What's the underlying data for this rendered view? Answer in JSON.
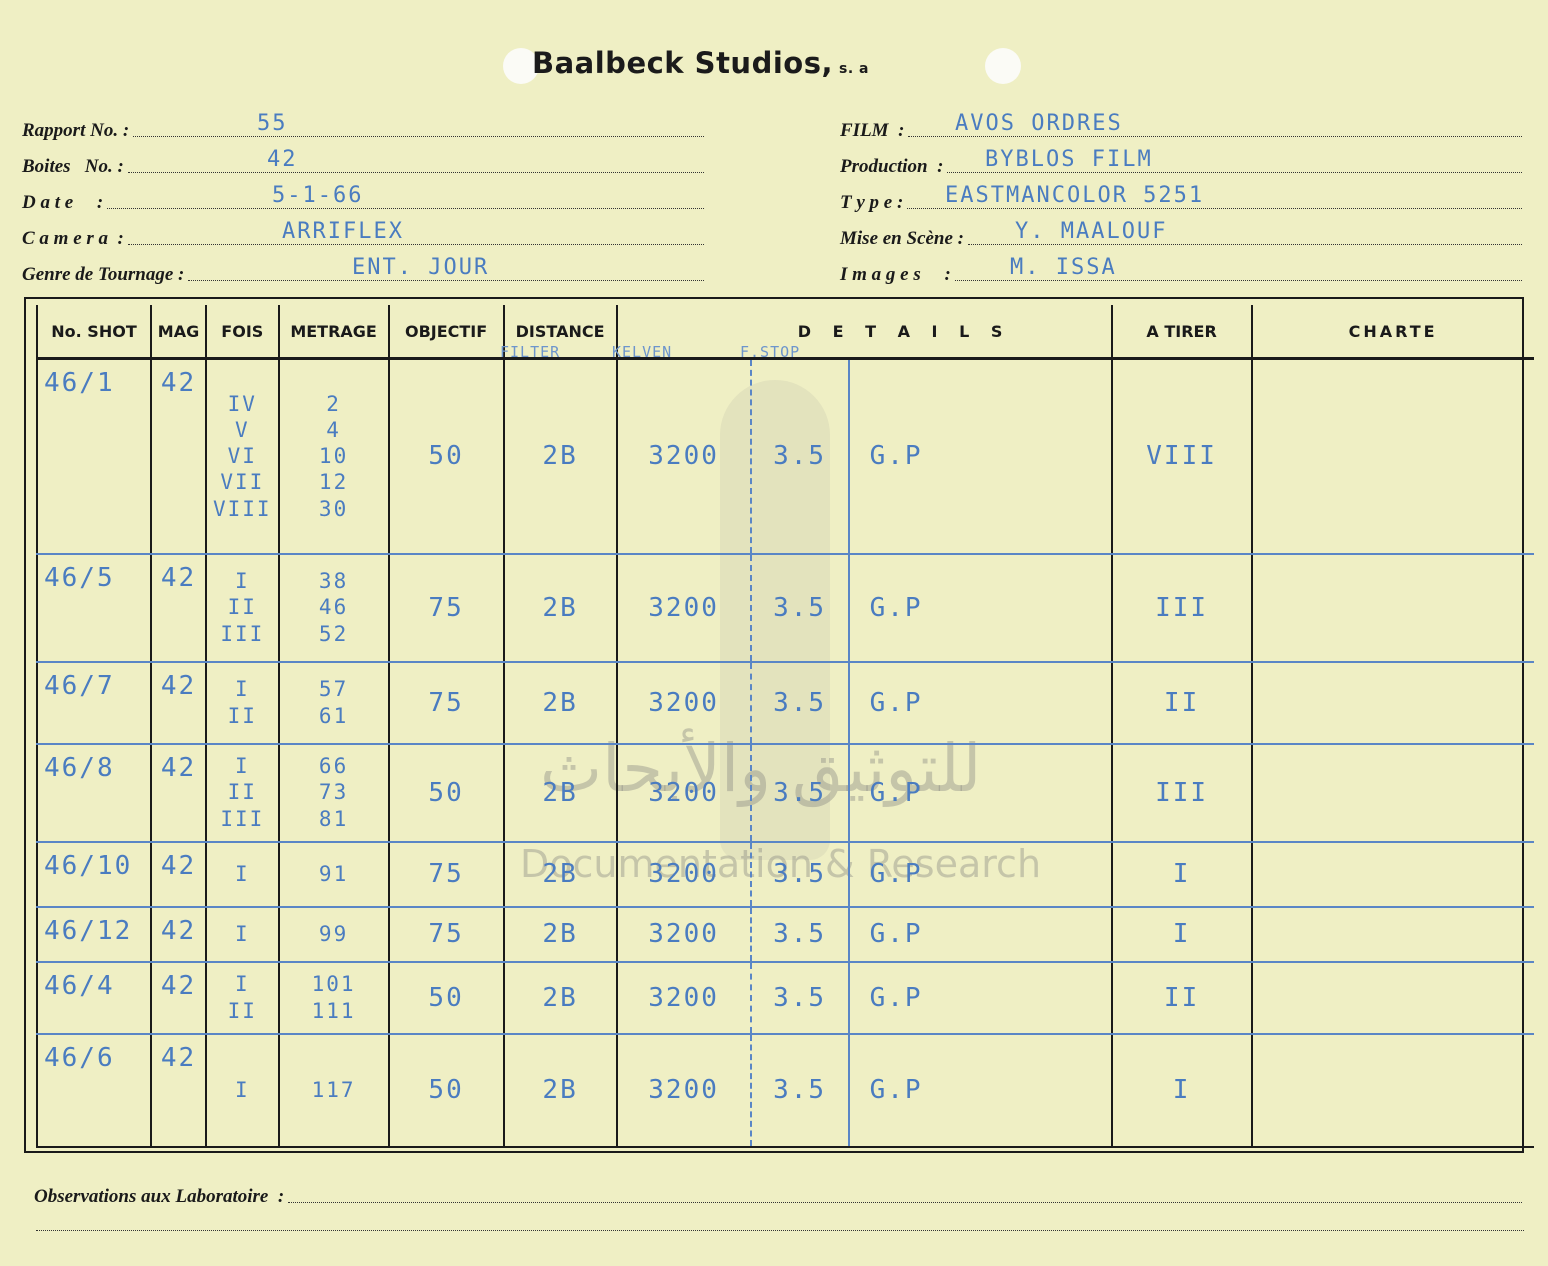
{
  "header": {
    "brand": "Baalbeck Studios,",
    "brand_suffix": "s. a"
  },
  "left_fields": [
    {
      "label": "Rapport No. :",
      "value": "55"
    },
    {
      "label": "Boites   No. :",
      "value": "42"
    },
    {
      "label": "D a t e     :",
      "value": "5-1-66"
    },
    {
      "label": "C a m e r a  :",
      "value": "ARRIFLEX"
    },
    {
      "label": "Genre de Tournage :",
      "value": "ENT. JOUR"
    }
  ],
  "right_fields": [
    {
      "label": "FILM  :",
      "value": "AVOS ORDRES"
    },
    {
      "label": "Production  :",
      "value": "BYBLOS FILM"
    },
    {
      "label": "T y p e :",
      "value": "EASTMANCOLOR   5251"
    },
    {
      "label": "Mise en Scène :",
      "value": "Y. MAALOUF"
    },
    {
      "label": "I m a g e s     :",
      "value": "M. ISSA"
    }
  ],
  "table": {
    "headers": [
      "No. SHOT",
      "MAG",
      "FOIS",
      "METRAGE",
      "OBJECTIF",
      "DISTANCE",
      "D E T A I L S",
      "A TIRER",
      "CHARTE"
    ],
    "handwritten_subheaders": [
      "FILTER",
      "KELVEN",
      "F.STOP"
    ],
    "rows": [
      {
        "shot": "46/1",
        "mag": "42",
        "fois": [
          "IV",
          "V",
          "VI",
          "VII",
          "VIII"
        ],
        "metrage": [
          "2",
          "4",
          "10",
          "12",
          "30"
        ],
        "objectif": "50",
        "filter": "2B",
        "kelvin": "3200",
        "fstop": "3.5",
        "details": "G.P",
        "a_tirer": "VIII",
        "charte": ""
      },
      {
        "shot": "46/5",
        "mag": "42",
        "fois": [
          "I",
          "II",
          "III"
        ],
        "metrage": [
          "38",
          "46",
          "52"
        ],
        "objectif": "75",
        "filter": "2B",
        "kelvin": "3200",
        "fstop": "3.5",
        "details": "G.P",
        "a_tirer": "III",
        "charte": ""
      },
      {
        "shot": "46/7",
        "mag": "42",
        "fois": [
          "I",
          "II"
        ],
        "metrage": [
          "57",
          "61"
        ],
        "objectif": "75",
        "filter": "2B",
        "kelvin": "3200",
        "fstop": "3.5",
        "details": "G.P",
        "a_tirer": "II",
        "charte": ""
      },
      {
        "shot": "46/8",
        "mag": "42",
        "fois": [
          "I",
          "II",
          "III"
        ],
        "metrage": [
          "66",
          "73",
          "81"
        ],
        "objectif": "50",
        "filter": "2B",
        "kelvin": "3200",
        "fstop": "3.5",
        "details": "G.P",
        "a_tirer": "III",
        "charte": ""
      },
      {
        "shot": "46/10",
        "mag": "42",
        "fois": [
          "I"
        ],
        "metrage": [
          "91"
        ],
        "objectif": "75",
        "filter": "2B",
        "kelvin": "3200",
        "fstop": "3.5",
        "details": "G.P",
        "a_tirer": "I",
        "charte": ""
      },
      {
        "shot": "46/12",
        "mag": "42",
        "fois": [
          "I"
        ],
        "metrage": [
          "99"
        ],
        "objectif": "75",
        "filter": "2B",
        "kelvin": "3200",
        "fstop": "3.5",
        "details": "G.P",
        "a_tirer": "I",
        "charte": ""
      },
      {
        "shot": "46/4",
        "mag": "42",
        "fois": [
          "I",
          "II"
        ],
        "metrage": [
          "101",
          "111"
        ],
        "objectif": "50",
        "filter": "2B",
        "kelvin": "3200",
        "fstop": "3.5",
        "details": "G.P",
        "a_tirer": "II",
        "charte": ""
      },
      {
        "shot": "46/6",
        "mag": "42",
        "fois": [
          "I"
        ],
        "metrage": [
          "117"
        ],
        "objectif": "50",
        "filter": "2B",
        "kelvin": "3200",
        "fstop": "3.5",
        "details": "G.P",
        "a_tirer": "I",
        "charte": ""
      }
    ]
  },
  "footer": {
    "observations_label": "Observations aux Laboratoire  :"
  },
  "watermark": {
    "arabic": "للتوثيق والأبحاث",
    "english": "Documentation & Research"
  },
  "colors": {
    "paper": "#efefc4",
    "ink": "#4a7cc0",
    "print": "#1a1a1a"
  }
}
